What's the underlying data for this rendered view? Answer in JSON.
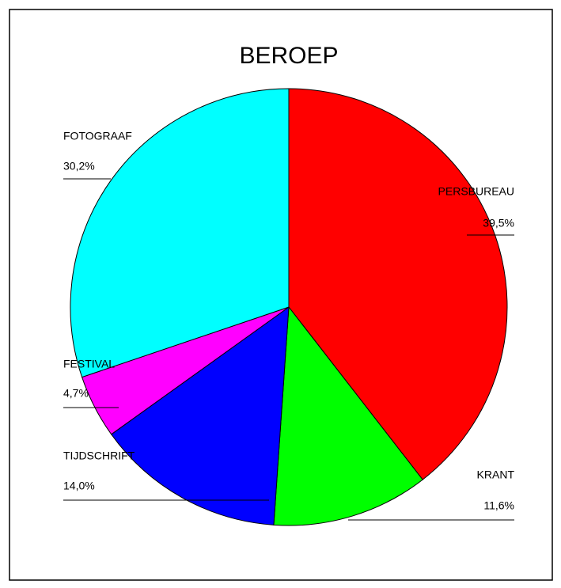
{
  "chart_data": {
    "type": "pie",
    "title": "BEROEP",
    "categories": [
      "PERSBUREAU",
      "KRANT",
      "TIJDSCHRIFT",
      "FESTIVAL",
      "FOTOGRAAF"
    ],
    "values": [
      39.5,
      11.6,
      14.0,
      4.7,
      30.2
    ],
    "value_labels": [
      "39,5%",
      "11,6%",
      "14,0%",
      "4,7%",
      "30,2%"
    ],
    "colors": [
      "#ff0000",
      "#00ff00",
      "#0000ff",
      "#ff00ff",
      "#00ffff"
    ]
  }
}
